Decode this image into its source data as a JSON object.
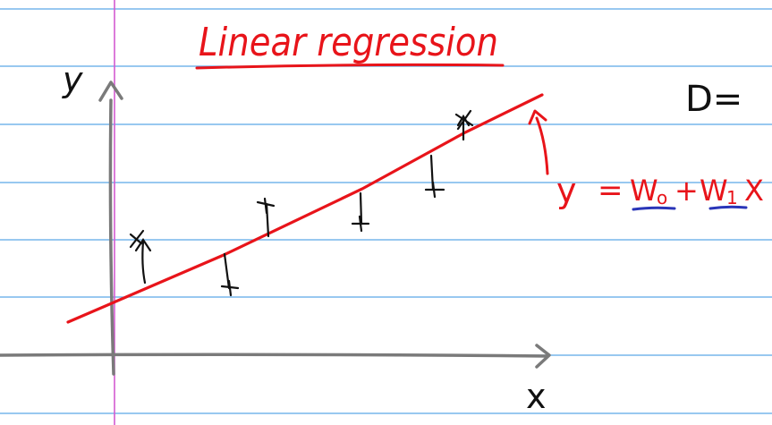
{
  "title": "Linear regression",
  "axis_y_label": "y",
  "axis_x_label": "x",
  "dataset_label": "D=",
  "equation": {
    "lhs": "y",
    "eq": "=",
    "w0": "W",
    "w0_sub": "o",
    "plus": "+",
    "w1": "W",
    "w1_sub": "1",
    "x": "X"
  },
  "colors": {
    "paper": "#ffffff",
    "rule_line": "#5aa8e6",
    "margin_line": "#d35ad0",
    "axis": "#7a7a7a",
    "ink_red": "#e8141a",
    "ink_black": "#111111",
    "ink_blue": "#2a35b8"
  },
  "data_points": 6
}
